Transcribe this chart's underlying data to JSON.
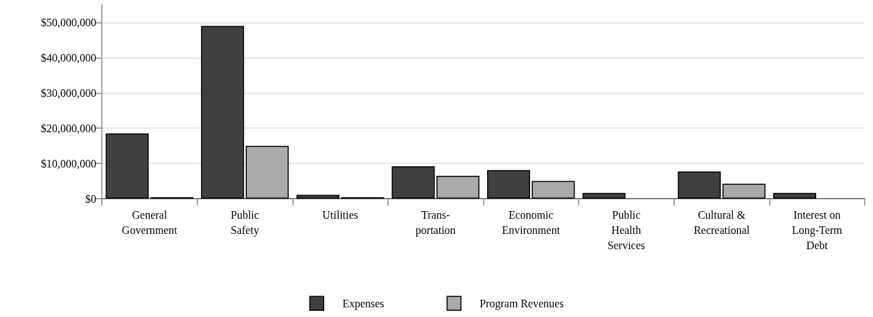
{
  "chart_data": {
    "type": "bar",
    "categories": [
      "General\nGovernment",
      "Public\nSafety",
      "Utilities",
      "Trans-\nportation",
      "Economic\nEnvironment",
      "Public\nHealth\nServices",
      "Cultural &\nRecreational",
      "Interest on\nLong-Term\nDebt"
    ],
    "series": [
      {
        "name": "Expenses",
        "color": "#404040",
        "values": [
          18500000,
          49000000,
          1100000,
          9200000,
          8100000,
          1600000,
          7700000,
          1600000
        ]
      },
      {
        "name": "Program Revenues",
        "color": "#aaaaaa",
        "values": [
          400000,
          15000000,
          400000,
          6500000,
          5000000,
          null,
          4200000,
          null
        ]
      }
    ],
    "ylim": [
      0,
      55000000
    ],
    "yticks": [
      {
        "value": 0,
        "label": "$0"
      },
      {
        "value": 10000000,
        "label": "$10,000,000"
      },
      {
        "value": 20000000,
        "label": "$20,000,000"
      },
      {
        "value": 30000000,
        "label": "$30,000,000"
      },
      {
        "value": 40000000,
        "label": "$40,000,000"
      },
      {
        "value": 50000000,
        "label": "$50,000,000"
      }
    ],
    "grid": "y",
    "legend": "bottom"
  }
}
